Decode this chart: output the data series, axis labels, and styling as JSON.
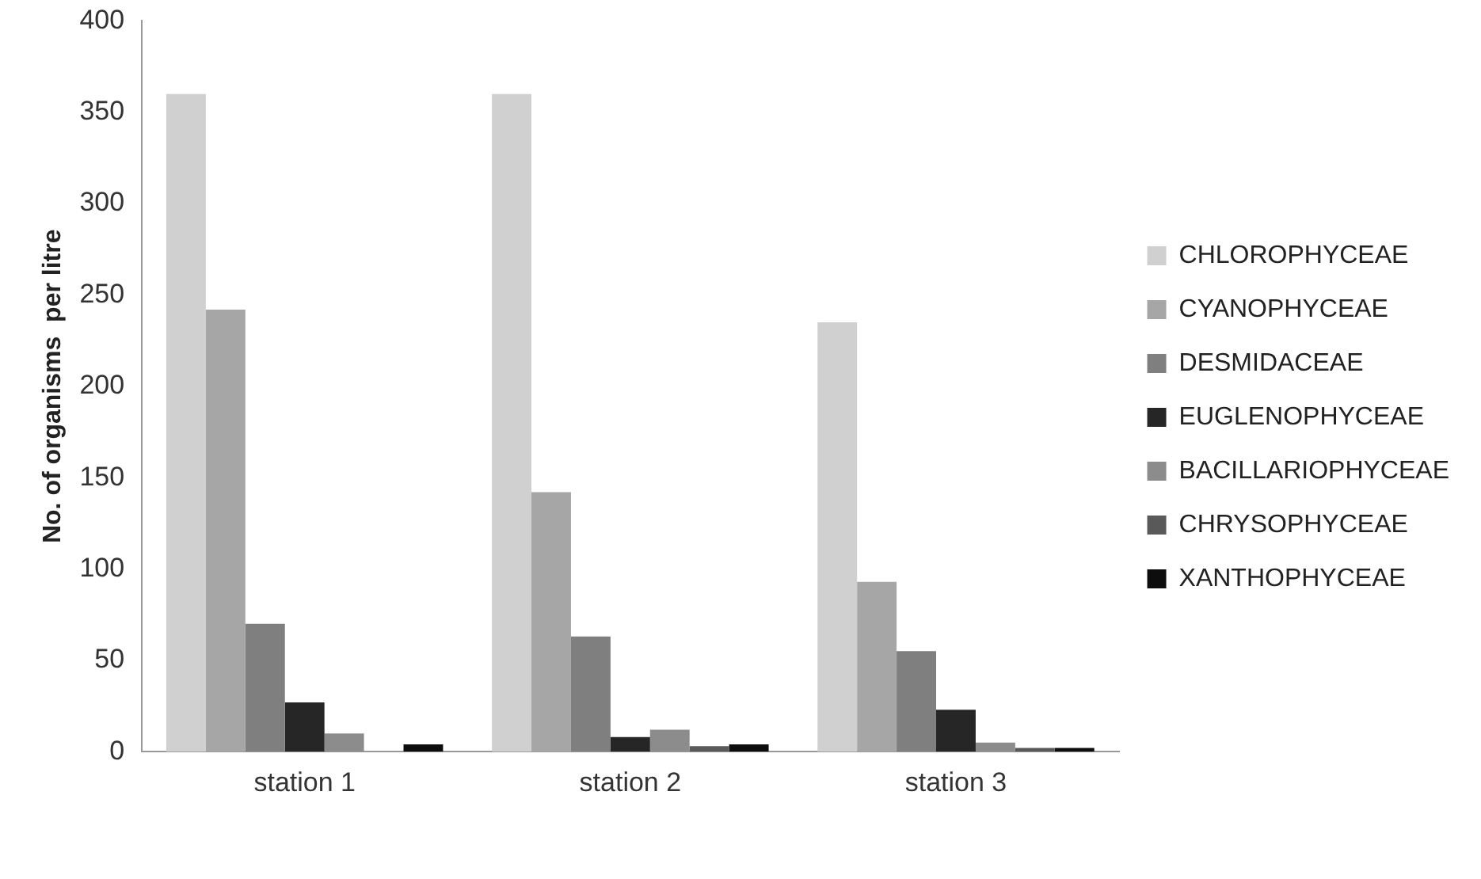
{
  "chart_data": {
    "type": "bar",
    "ylabel": "No. of organisms  per litre",
    "categories": [
      "station 1",
      "station 2",
      "station 3"
    ],
    "series": [
      {
        "name": "CHLOROPHYCEAE",
        "color": "#d0d0d0",
        "values": [
          360,
          360,
          235
        ]
      },
      {
        "name": "CYANOPHYCEAE",
        "color": "#a6a6a6",
        "values": [
          242,
          142,
          93
        ]
      },
      {
        "name": "DESMIDACEAE",
        "color": "#7f7f7f",
        "values": [
          70,
          63,
          55
        ]
      },
      {
        "name": "EUGLENOPHYCEAE",
        "color": "#262626",
        "values": [
          27,
          8,
          23
        ]
      },
      {
        "name": "BACILLARIOPHYCEAE",
        "color": "#8c8c8c",
        "values": [
          10,
          12,
          5
        ]
      },
      {
        "name": "CHRYSOPHYCEAE",
        "color": "#595959",
        "values": [
          0,
          3,
          2
        ]
      },
      {
        "name": "XANTHOPHYCEAE",
        "color": "#0d0d0d",
        "values": [
          4,
          4,
          2
        ]
      }
    ],
    "ylim": [
      0,
      400
    ],
    "yticks": [
      0,
      50,
      100,
      150,
      200,
      250,
      300,
      350,
      400
    ],
    "grid": false,
    "legend": "right"
  }
}
